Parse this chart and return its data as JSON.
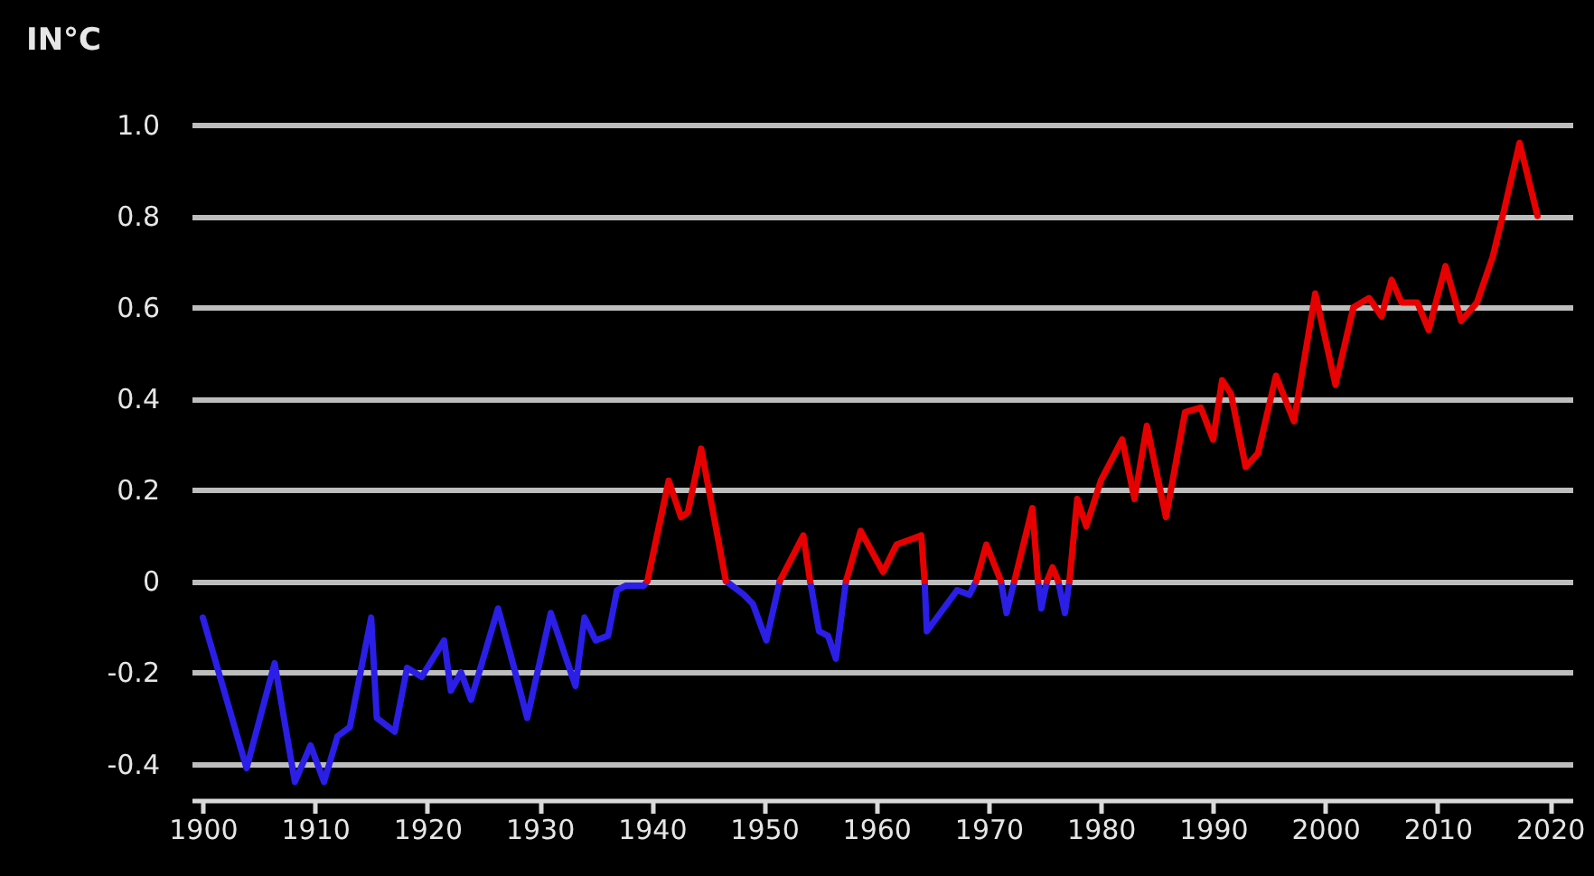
{
  "chart_data": {
    "type": "line",
    "ylabel": "IN°C",
    "grid": "y",
    "xlim": [
      1899,
      2022
    ],
    "xticks": [
      1900,
      1910,
      1920,
      1930,
      1940,
      1950,
      1960,
      1970,
      1980,
      1990,
      2000,
      2010,
      2020
    ],
    "ylim": [
      -0.48,
      1.0
    ],
    "yticks": [
      -0.4,
      -0.2,
      0,
      0.2,
      0.4,
      0.6,
      {
        "value": 1,
        "label": "1.0"
      },
      0.8
    ],
    "series": [
      {
        "color": "#2b1ee6",
        "x": [
          1900,
          1903.9,
          1906.4,
          1908.2,
          1909.6,
          1910.8,
          1912.0,
          1913.1,
          1915.0,
          1915.5,
          1917.1,
          1918.2,
          1919.5,
          1921.5,
          1922.1,
          1923.0,
          1923.9,
          1926.3,
          1927.3,
          1928.9,
          1931.0,
          1933.2,
          1934.0,
          1935.0,
          1936.1,
          1936.9,
          1937.7,
          1939.3,
          1939.6
        ],
        "values": [
          -0.08,
          -0.41,
          -0.18,
          -0.44,
          -0.36,
          -0.44,
          -0.34,
          -0.32,
          -0.08,
          -0.3,
          -0.33,
          -0.19,
          -0.21,
          -0.13,
          -0.24,
          -0.2,
          -0.26,
          -0.06,
          -0.15,
          -0.3,
          -0.07,
          -0.23,
          -0.08,
          -0.13,
          -0.12,
          -0.02,
          -0.01,
          -0.01,
          0
        ]
      },
      {
        "color": "#2b1ee6",
        "x": [
          1946.6,
          1948.2,
          1949.0,
          1950.2,
          1951.4
        ],
        "values": [
          0,
          -0.03,
          -0.05,
          -0.13,
          0
        ]
      },
      {
        "color": "#2b1ee6",
        "x": [
          1954.1,
          1954.9,
          1955.7,
          1956.4,
          1957.3
        ],
        "values": [
          0,
          -0.11,
          -0.12,
          -0.17,
          0
        ]
      },
      {
        "color": "#2b1ee6",
        "x": [
          1964.3,
          1964.5,
          1967.2,
          1968.3,
          1968.9
        ],
        "values": [
          0,
          -0.11,
          -0.02,
          -0.03,
          0
        ]
      },
      {
        "color": "#2b1ee6",
        "x": [
          1971.1,
          1971.6,
          1972.3
        ],
        "values": [
          0,
          -0.07,
          0
        ]
      },
      {
        "color": "#2b1ee6",
        "x": [
          1974.4,
          1974.7,
          1975.2
        ],
        "values": [
          0,
          -0.06,
          0
        ]
      },
      {
        "color": "#2b1ee6",
        "x": [
          1976.2,
          1976.8,
          1977.2
        ],
        "values": [
          0,
          -0.07,
          0
        ]
      },
      {
        "color": "#e60000",
        "x": [
          1939.6,
          1941.5,
          1942.6,
          1943.2,
          1944.4,
          1946.6
        ],
        "values": [
          0,
          0.22,
          0.14,
          0.15,
          0.29,
          0
        ]
      },
      {
        "color": "#e60000",
        "x": [
          1951.4,
          1953.5,
          1954.1
        ],
        "values": [
          0,
          0.1,
          0
        ]
      },
      {
        "color": "#e60000",
        "x": [
          1957.3,
          1958.6,
          1960.6,
          1961.8,
          1964.0,
          1964.3
        ],
        "values": [
          0,
          0.11,
          0.02,
          0.08,
          0.1,
          0
        ]
      },
      {
        "color": "#e60000",
        "x": [
          1968.9,
          1969.8,
          1971.1
        ],
        "values": [
          0,
          0.08,
          0
        ]
      },
      {
        "color": "#e60000",
        "x": [
          1972.3,
          1973.9,
          1974.4
        ],
        "values": [
          0,
          0.16,
          0
        ]
      },
      {
        "color": "#e60000",
        "x": [
          1975.2,
          1975.7,
          1976.2
        ],
        "values": [
          0,
          0.03,
          0
        ]
      },
      {
        "color": "#e60000",
        "x": [
          1977.2,
          1977.9,
          1978.7,
          1980.0,
          1981.9,
          1983.0,
          1984.1,
          1985.8,
          1987.5,
          1988.9,
          1990.0,
          1990.8,
          1991.6,
          1992.9,
          1994.0,
          1995.6,
          1997.2,
          1999.1,
          2000.9,
          2002.5,
          2003.9,
          2005.0,
          2005.9,
          2006.8,
          2008.2,
          2009.2,
          2010.7,
          2012.1,
          2013.5,
          2014.9,
          2015.9,
          2017.3,
          2018.9
        ],
        "values": [
          0,
          0.18,
          0.12,
          0.22,
          0.31,
          0.18,
          0.34,
          0.14,
          0.37,
          0.38,
          0.31,
          0.44,
          0.41,
          0.25,
          0.28,
          0.45,
          0.35,
          0.63,
          0.43,
          0.6,
          0.62,
          0.58,
          0.66,
          0.61,
          0.61,
          0.55,
          0.69,
          0.57,
          0.61,
          0.71,
          0.81,
          0.96,
          0.8
        ]
      }
    ]
  }
}
